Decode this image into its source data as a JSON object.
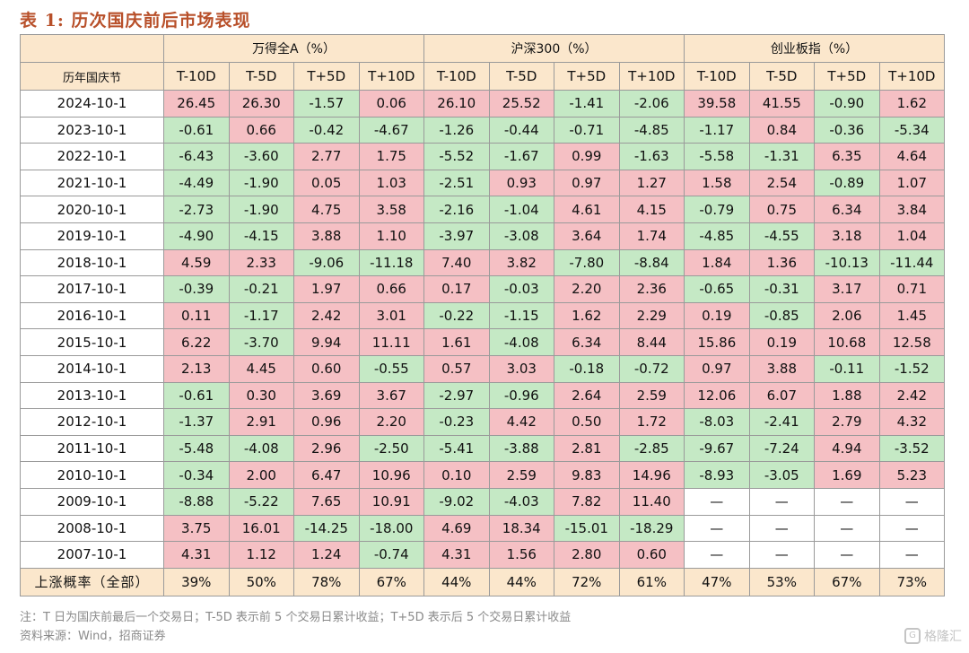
{
  "title": "表 1:  历次国庆前后市场表现",
  "header": {
    "corner": "历年国庆节",
    "groups": [
      "万得全A（%）",
      "沪深300（%）",
      "创业板指（%）"
    ],
    "subcols": [
      "T-10D",
      "T-5D",
      "T+5D",
      "T+10D"
    ]
  },
  "rows": [
    {
      "date": "2024-10-1",
      "values": [
        "26.45",
        "26.30",
        "-1.57",
        "0.06",
        "26.10",
        "25.52",
        "-1.41",
        "-2.06",
        "39.58",
        "41.55",
        "-0.90",
        "1.62"
      ]
    },
    {
      "date": "2023-10-1",
      "values": [
        "-0.61",
        "0.66",
        "-0.42",
        "-4.67",
        "-1.26",
        "-0.44",
        "-0.71",
        "-4.85",
        "-1.17",
        "0.84",
        "-0.36",
        "-5.34"
      ]
    },
    {
      "date": "2022-10-1",
      "values": [
        "-6.43",
        "-3.60",
        "2.77",
        "1.75",
        "-5.52",
        "-1.67",
        "0.99",
        "-1.63",
        "-5.58",
        "-1.31",
        "6.35",
        "4.64"
      ]
    },
    {
      "date": "2021-10-1",
      "values": [
        "-4.49",
        "-1.90",
        "0.05",
        "1.03",
        "-2.51",
        "0.93",
        "0.97",
        "1.27",
        "1.58",
        "2.54",
        "-0.89",
        "1.07"
      ]
    },
    {
      "date": "2020-10-1",
      "values": [
        "-2.73",
        "-1.90",
        "4.75",
        "3.58",
        "-2.16",
        "-1.04",
        "4.61",
        "4.15",
        "-0.79",
        "0.75",
        "6.34",
        "3.84"
      ]
    },
    {
      "date": "2019-10-1",
      "values": [
        "-4.90",
        "-4.15",
        "3.88",
        "1.10",
        "-3.97",
        "-3.08",
        "3.64",
        "1.74",
        "-4.85",
        "-4.55",
        "3.18",
        "1.04"
      ]
    },
    {
      "date": "2018-10-1",
      "values": [
        "4.59",
        "2.33",
        "-9.06",
        "-11.18",
        "7.40",
        "3.82",
        "-7.80",
        "-8.84",
        "1.84",
        "1.36",
        "-10.13",
        "-11.44"
      ]
    },
    {
      "date": "2017-10-1",
      "values": [
        "-0.39",
        "-0.21",
        "1.97",
        "0.66",
        "0.17",
        "-0.03",
        "2.20",
        "2.36",
        "-0.65",
        "-0.31",
        "3.17",
        "0.71"
      ]
    },
    {
      "date": "2016-10-1",
      "values": [
        "0.11",
        "-1.17",
        "2.42",
        "3.01",
        "-0.22",
        "-1.15",
        "1.62",
        "2.29",
        "0.19",
        "-0.85",
        "2.06",
        "1.45"
      ]
    },
    {
      "date": "2015-10-1",
      "values": [
        "6.22",
        "-3.70",
        "9.94",
        "11.11",
        "1.61",
        "-4.08",
        "6.34",
        "8.44",
        "15.86",
        "0.19",
        "10.68",
        "12.58"
      ]
    },
    {
      "date": "2014-10-1",
      "values": [
        "2.13",
        "4.45",
        "0.60",
        "-0.55",
        "0.57",
        "3.03",
        "-0.18",
        "-0.72",
        "0.97",
        "3.88",
        "-0.11",
        "-1.52"
      ]
    },
    {
      "date": "2013-10-1",
      "values": [
        "-0.61",
        "0.30",
        "3.69",
        "3.67",
        "-2.97",
        "-0.96",
        "2.64",
        "2.59",
        "12.06",
        "6.07",
        "1.88",
        "2.42"
      ]
    },
    {
      "date": "2012-10-1",
      "values": [
        "-1.37",
        "2.91",
        "0.96",
        "2.20",
        "-0.23",
        "4.42",
        "0.50",
        "1.72",
        "-8.03",
        "-2.41",
        "2.79",
        "4.32"
      ]
    },
    {
      "date": "2011-10-1",
      "values": [
        "-5.48",
        "-4.08",
        "2.96",
        "-2.50",
        "-5.41",
        "-3.88",
        "2.81",
        "-2.85",
        "-9.67",
        "-7.24",
        "4.94",
        "-3.52"
      ]
    },
    {
      "date": "2010-10-1",
      "values": [
        "-0.34",
        "2.00",
        "6.47",
        "10.96",
        "0.10",
        "2.59",
        "9.83",
        "14.96",
        "-8.93",
        "-3.05",
        "1.69",
        "5.23"
      ]
    },
    {
      "date": "2009-10-1",
      "values": [
        "-8.88",
        "-5.22",
        "7.65",
        "10.91",
        "-9.02",
        "-4.03",
        "7.82",
        "11.40",
        "—",
        "—",
        "—",
        "—"
      ]
    },
    {
      "date": "2008-10-1",
      "values": [
        "3.75",
        "16.01",
        "-14.25",
        "-18.00",
        "4.69",
        "18.34",
        "-15.01",
        "-18.29",
        "—",
        "—",
        "—",
        "—"
      ]
    },
    {
      "date": "2007-10-1",
      "values": [
        "4.31",
        "1.12",
        "1.24",
        "-0.74",
        "4.31",
        "1.56",
        "2.80",
        "0.60",
        "—",
        "—",
        "—",
        "—"
      ]
    }
  ],
  "footer": {
    "label": "上涨概率（全部）",
    "values": [
      "39%",
      "50%",
      "78%",
      "67%",
      "44%",
      "44%",
      "72%",
      "61%",
      "47%",
      "53%",
      "67%",
      "73%"
    ]
  },
  "notes": {
    "line1": "注：T 日为国庆前最后一个交易日；T-5D 表示前 5 个交易日累计收益；T+5D 表示后 5 个交易日累计收益",
    "line2": "资料来源：Wind，招商证券"
  },
  "watermark": "格隆汇",
  "colors": {
    "positive": "#f5c0c4",
    "negative": "#c5e9c5",
    "header": "#fbe7cc",
    "title": "#b8502a"
  }
}
